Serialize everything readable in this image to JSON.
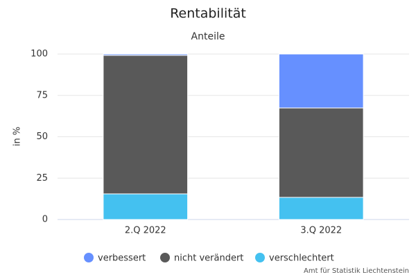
{
  "chart_data": {
    "type": "stacked-bar",
    "title": "Rentabilität",
    "subtitle": "Anteile",
    "y_label": "in %",
    "categories": [
      "2.Q 2022",
      "3.Q 2022"
    ],
    "series": [
      {
        "name": "verbessert",
        "color": "#6690ff",
        "values": [
          0.8,
          32.6
        ]
      },
      {
        "name": "nicht verändert",
        "color": "#595959",
        "values": [
          83.7,
          54.0
        ]
      },
      {
        "name": "verschlechtert",
        "color": "#44c1f0",
        "values": [
          15.5,
          13.4
        ]
      }
    ],
    "ylim": [
      0,
      100
    ],
    "yticks": [
      0,
      25,
      50,
      75,
      100
    ],
    "grid": true,
    "credit": "Amt für Statistik Liechtenstein"
  }
}
